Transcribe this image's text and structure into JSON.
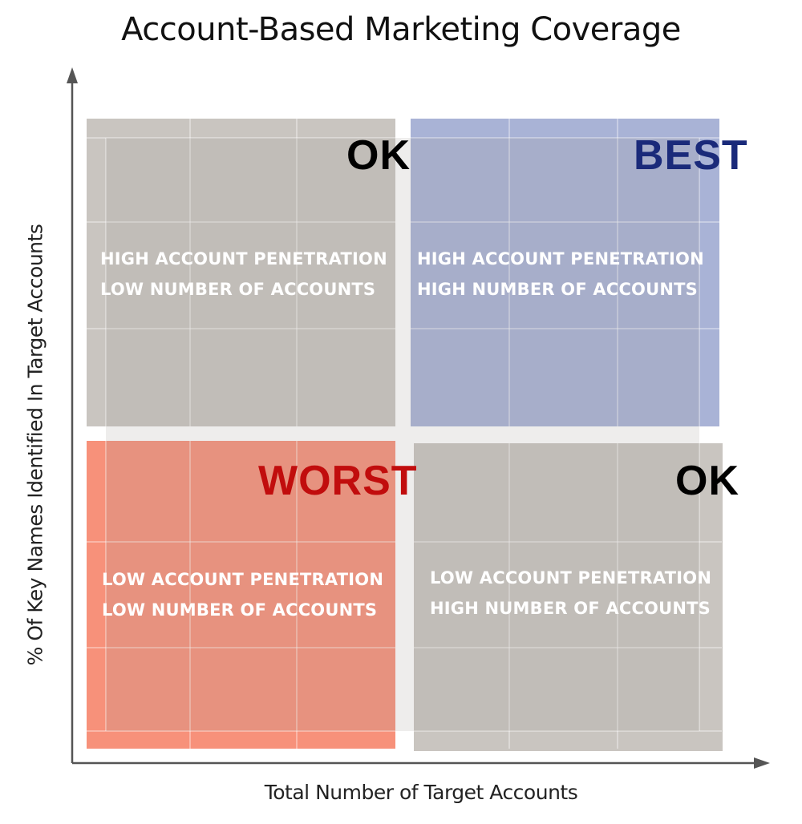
{
  "title": "Account-Based Marketing Coverage",
  "x_axis_label": "Total Number of Target Accounts",
  "y_axis_label": "% Of Key Names Identified In Target Accounts",
  "quadrants": {
    "top_left": {
      "tag": "OK",
      "line1": "HIGH ACCOUNT PENETRATION",
      "line2": "LOW NUMBER OF ACCOUNTS",
      "color": "#c9c5c0"
    },
    "top_right": {
      "tag": "BEST",
      "line1": "HIGH ACCOUNT PENETRATION",
      "line2": "HIGH NUMBER OF ACCOUNTS",
      "color": "#a9b3d6"
    },
    "bottom_left": {
      "tag": "WORST",
      "line1": "LOW ACCOUNT PENETRATION",
      "line2": "LOW NUMBER OF ACCOUNTS",
      "color": "#f7917a"
    },
    "bottom_right": {
      "tag": "OK",
      "line1": "LOW ACCOUNT PENETRATION",
      "line2": "HIGH NUMBER OF ACCOUNTS",
      "color": "#c9c5c0"
    }
  },
  "colors": {
    "best_tag": "#1a2a7a",
    "worst_tag": "#c10d0d",
    "ok_tag": "#000000",
    "axis": "#555555"
  }
}
